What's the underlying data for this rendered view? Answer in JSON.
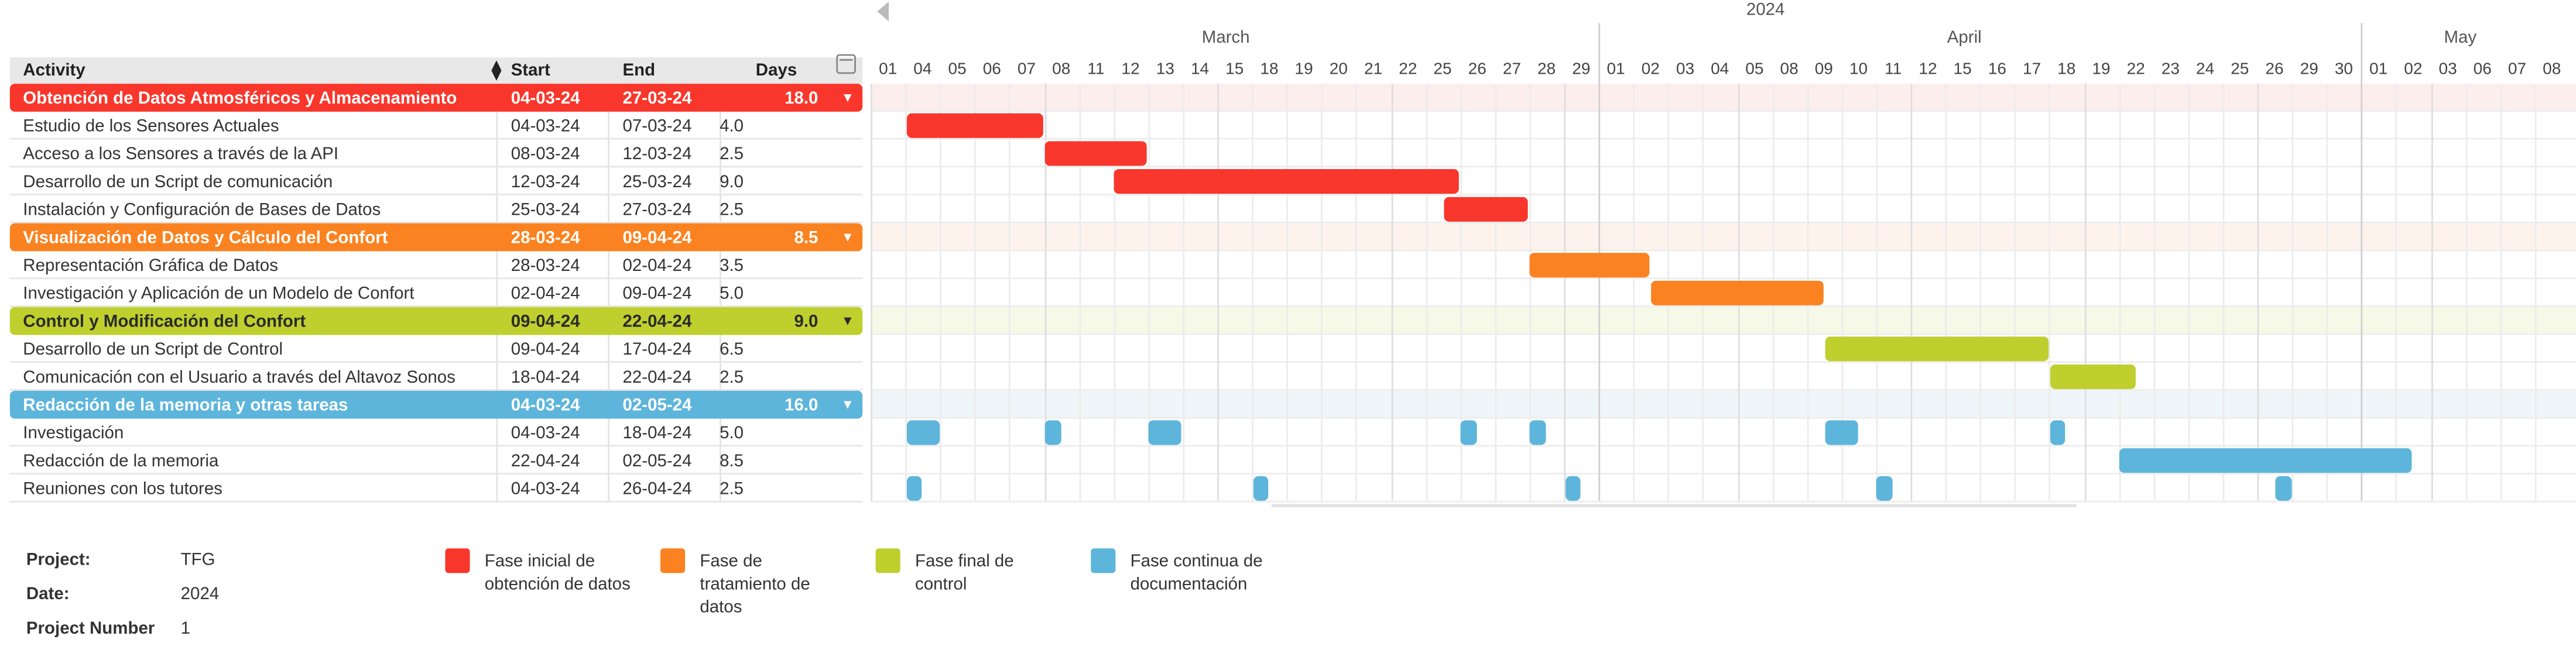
{
  "table": {
    "headers": {
      "activity": "Activity",
      "start": "Start",
      "end": "End",
      "days": "Days"
    },
    "rows": [
      {
        "type": "group",
        "color": "red",
        "name": "Obtención de Datos Atmosféricos y Almacenamiento",
        "start": "04-03-24",
        "end": "27-03-24",
        "days": "18.0"
      },
      {
        "type": "task",
        "color": "red",
        "name": "Estudio de los Sensores Actuales",
        "start": "04-03-24",
        "end": "07-03-24",
        "days": "4.0"
      },
      {
        "type": "task",
        "color": "red",
        "name": "Acceso a los Sensores a través de la API",
        "start": "08-03-24",
        "end": "12-03-24",
        "days": "2.5"
      },
      {
        "type": "task",
        "color": "red",
        "name": "Desarrollo de un Script de comunicación",
        "start": "12-03-24",
        "end": "25-03-24",
        "days": "9.0"
      },
      {
        "type": "task",
        "color": "red",
        "name": "Instalación y Configuración de Bases de Datos",
        "start": "25-03-24",
        "end": "27-03-24",
        "days": "2.5"
      },
      {
        "type": "group",
        "color": "orange",
        "name": "Visualización de Datos y Cálculo del Confort",
        "start": "28-03-24",
        "end": "09-04-24",
        "days": "8.5"
      },
      {
        "type": "task",
        "color": "orange",
        "name": "Representación Gráfica de Datos",
        "start": "28-03-24",
        "end": "02-04-24",
        "days": "3.5"
      },
      {
        "type": "task",
        "color": "orange",
        "name": "Investigación y Aplicación de un Modelo de Confort",
        "start": "02-04-24",
        "end": "09-04-24",
        "days": "5.0"
      },
      {
        "type": "group",
        "color": "yellow",
        "name": "Control y Modificación del Confort",
        "start": "09-04-24",
        "end": "22-04-24",
        "days": "9.0"
      },
      {
        "type": "task",
        "color": "yellow",
        "name": "Desarrollo de un Script de Control",
        "start": "09-04-24",
        "end": "17-04-24",
        "days": "6.5"
      },
      {
        "type": "task",
        "color": "yellow",
        "name": "Comunicación con el Usuario a través del Altavoz Sonos",
        "start": "18-04-24",
        "end": "22-04-24",
        "days": "2.5"
      },
      {
        "type": "group",
        "color": "blue",
        "name": "Redacción de la memoria y otras tareas",
        "start": "04-03-24",
        "end": "02-05-24",
        "days": "16.0"
      },
      {
        "type": "task",
        "color": "blue",
        "name": "Investigación",
        "start": "04-03-24",
        "end": "18-04-24",
        "days": "5.0"
      },
      {
        "type": "task",
        "color": "blue",
        "name": "Redacción de la memoria",
        "start": "22-04-24",
        "end": "02-05-24",
        "days": "8.5"
      },
      {
        "type": "task",
        "color": "blue",
        "name": "Reuniones con los tutores",
        "start": "04-03-24",
        "end": "26-04-24",
        "days": "2.5"
      }
    ]
  },
  "timeline": {
    "year": "2024",
    "months": [
      "March",
      "April",
      "May"
    ],
    "days": [
      "01",
      "04",
      "05",
      "06",
      "07",
      "08",
      "11",
      "12",
      "13",
      "14",
      "15",
      "18",
      "19",
      "20",
      "21",
      "22",
      "25",
      "26",
      "27",
      "28",
      "29",
      "01",
      "02",
      "03",
      "04",
      "05",
      "08",
      "09",
      "10",
      "11",
      "12",
      "15",
      "16",
      "17",
      "18",
      "19",
      "22",
      "23",
      "24",
      "25",
      "26",
      "29",
      "30",
      "01",
      "02",
      "03",
      "06",
      "07",
      "08"
    ],
    "month_start_index": [
      0,
      21,
      43
    ]
  },
  "bars": [
    {
      "row": 1,
      "color": "red",
      "segments": [
        [
          1,
          5
        ]
      ]
    },
    {
      "row": 2,
      "color": "red",
      "segments": [
        [
          5,
          8
        ]
      ]
    },
    {
      "row": 3,
      "color": "red",
      "segments": [
        [
          7,
          17
        ]
      ]
    },
    {
      "row": 4,
      "color": "red",
      "segments": [
        [
          16.5,
          19
        ]
      ]
    },
    {
      "row": 6,
      "color": "orange",
      "segments": [
        [
          19,
          22.5
        ]
      ]
    },
    {
      "row": 7,
      "color": "orange",
      "segments": [
        [
          22.5,
          27.5
        ]
      ]
    },
    {
      "row": 9,
      "color": "yellow",
      "segments": [
        [
          27.5,
          34
        ]
      ]
    },
    {
      "row": 10,
      "color": "yellow",
      "segments": [
        [
          34,
          36.5
        ]
      ]
    },
    {
      "row": 12,
      "color": "blue",
      "segments": [
        [
          1,
          2
        ],
        [
          5,
          5.5
        ],
        [
          8,
          9
        ],
        [
          17,
          17.5
        ],
        [
          19,
          19.5
        ],
        [
          27.5,
          28.5
        ],
        [
          34,
          34.5
        ]
      ]
    },
    {
      "row": 13,
      "color": "blue",
      "segments": [
        [
          36,
          44.5
        ]
      ]
    },
    {
      "row": 14,
      "color": "blue",
      "segments": [
        [
          1,
          1.5
        ],
        [
          11,
          11.5
        ],
        [
          20,
          20.5
        ],
        [
          29,
          29.5
        ],
        [
          40.5,
          41
        ]
      ]
    }
  ],
  "colors": {
    "red": "#f9362b",
    "orange": "#fb8220",
    "yellow": "#bfcf2e",
    "blue": "#5db5db",
    "band_red": "#fdeeee",
    "band_orange": "#fef3ec",
    "band_yellow": "#f6f9e8",
    "band_blue": "#eef6fa"
  },
  "footer": {
    "project_label": "Project:",
    "project_value": "TFG",
    "date_label": "Date:",
    "date_value": "2024",
    "number_label": "Project Number",
    "number_value": "1"
  },
  "legend": [
    {
      "color": "red",
      "text": "Fase inicial de obtención de datos"
    },
    {
      "color": "orange",
      "text": "Fase de tratamiento de datos"
    },
    {
      "color": "yellow",
      "text": "Fase final de control"
    },
    {
      "color": "blue",
      "text": "Fase continua de documentación"
    }
  ]
}
